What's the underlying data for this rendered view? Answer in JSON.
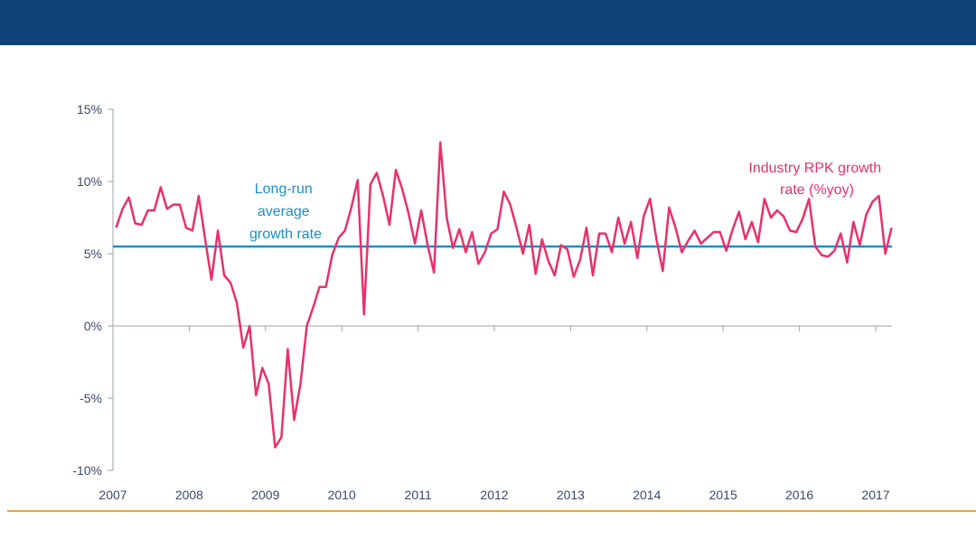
{
  "colors": {
    "header": "#0d4178",
    "footer_rule": "#e8a43a",
    "series_line": "#e8316b",
    "average_line": "#1a8fc4",
    "axis": "#9aa3ad"
  },
  "chart_data": {
    "type": "line",
    "title": "",
    "xlabel": "",
    "ylabel": "",
    "xlim": [
      2007,
      2017.25
    ],
    "ylim": [
      -10,
      15
    ],
    "y_ticks": [
      15,
      10,
      5,
      0,
      -5,
      -10
    ],
    "y_tick_labels": [
      "15%",
      "10%",
      "5%",
      "0%",
      "-5%",
      "-10%"
    ],
    "x_tick_labels": [
      "2007",
      "2008",
      "2009",
      "2010",
      "2011",
      "2012",
      "2013",
      "2014",
      "2015",
      "2016",
      "2017"
    ],
    "grid": false,
    "series": [
      {
        "name": "Industry RPK growth rate (%yoy)",
        "x_start": "2007-01",
        "frequency": "monthly",
        "values": [
          6.8,
          8.1,
          8.9,
          7.1,
          7.0,
          8.0,
          8.0,
          9.6,
          8.1,
          8.4,
          8.4,
          6.8,
          6.6,
          9.0,
          6.0,
          3.2,
          6.6,
          3.5,
          3.0,
          1.6,
          -1.5,
          0.0,
          -4.8,
          -2.9,
          -4.0,
          -8.4,
          -7.7,
          -1.6,
          -6.5,
          -4.0,
          0.0,
          1.3,
          2.7,
          2.7,
          4.9,
          6.1,
          6.6,
          8.2,
          10.1,
          0.8,
          9.8,
          10.6,
          9.0,
          7.0,
          10.8,
          9.5,
          7.8,
          5.7,
          8.0,
          5.6,
          3.7,
          12.7,
          7.5,
          5.4,
          6.7,
          5.1,
          6.5,
          4.3,
          5.1,
          6.4,
          6.7,
          9.3,
          8.4,
          6.8,
          5.0,
          7.0,
          3.6,
          6.0,
          4.5,
          3.5,
          5.6,
          5.3,
          3.4,
          4.6,
          6.8,
          3.5,
          6.4,
          6.4,
          5.1,
          7.5,
          5.7,
          7.2,
          4.7,
          7.6,
          8.8,
          6.0,
          3.8,
          8.2,
          6.8,
          5.1,
          5.9,
          6.6,
          5.7,
          6.1,
          6.5,
          6.5,
          5.2,
          6.7,
          7.9,
          6.0,
          7.2,
          5.8,
          8.8,
          7.5,
          8.0,
          7.6,
          6.6,
          6.5,
          7.4,
          8.8,
          5.5,
          4.9,
          4.8,
          5.2,
          6.4,
          4.4,
          7.2,
          5.6,
          7.7,
          8.6,
          9.0,
          5.0,
          6.8
        ]
      },
      {
        "name": "Long-run average growth rate",
        "constant": 5.5
      }
    ],
    "annotations": {
      "average": [
        "Long-run",
        "average",
        "growth rate"
      ],
      "series": [
        "Industry RPK growth",
        "rate (%yoy)"
      ]
    }
  }
}
